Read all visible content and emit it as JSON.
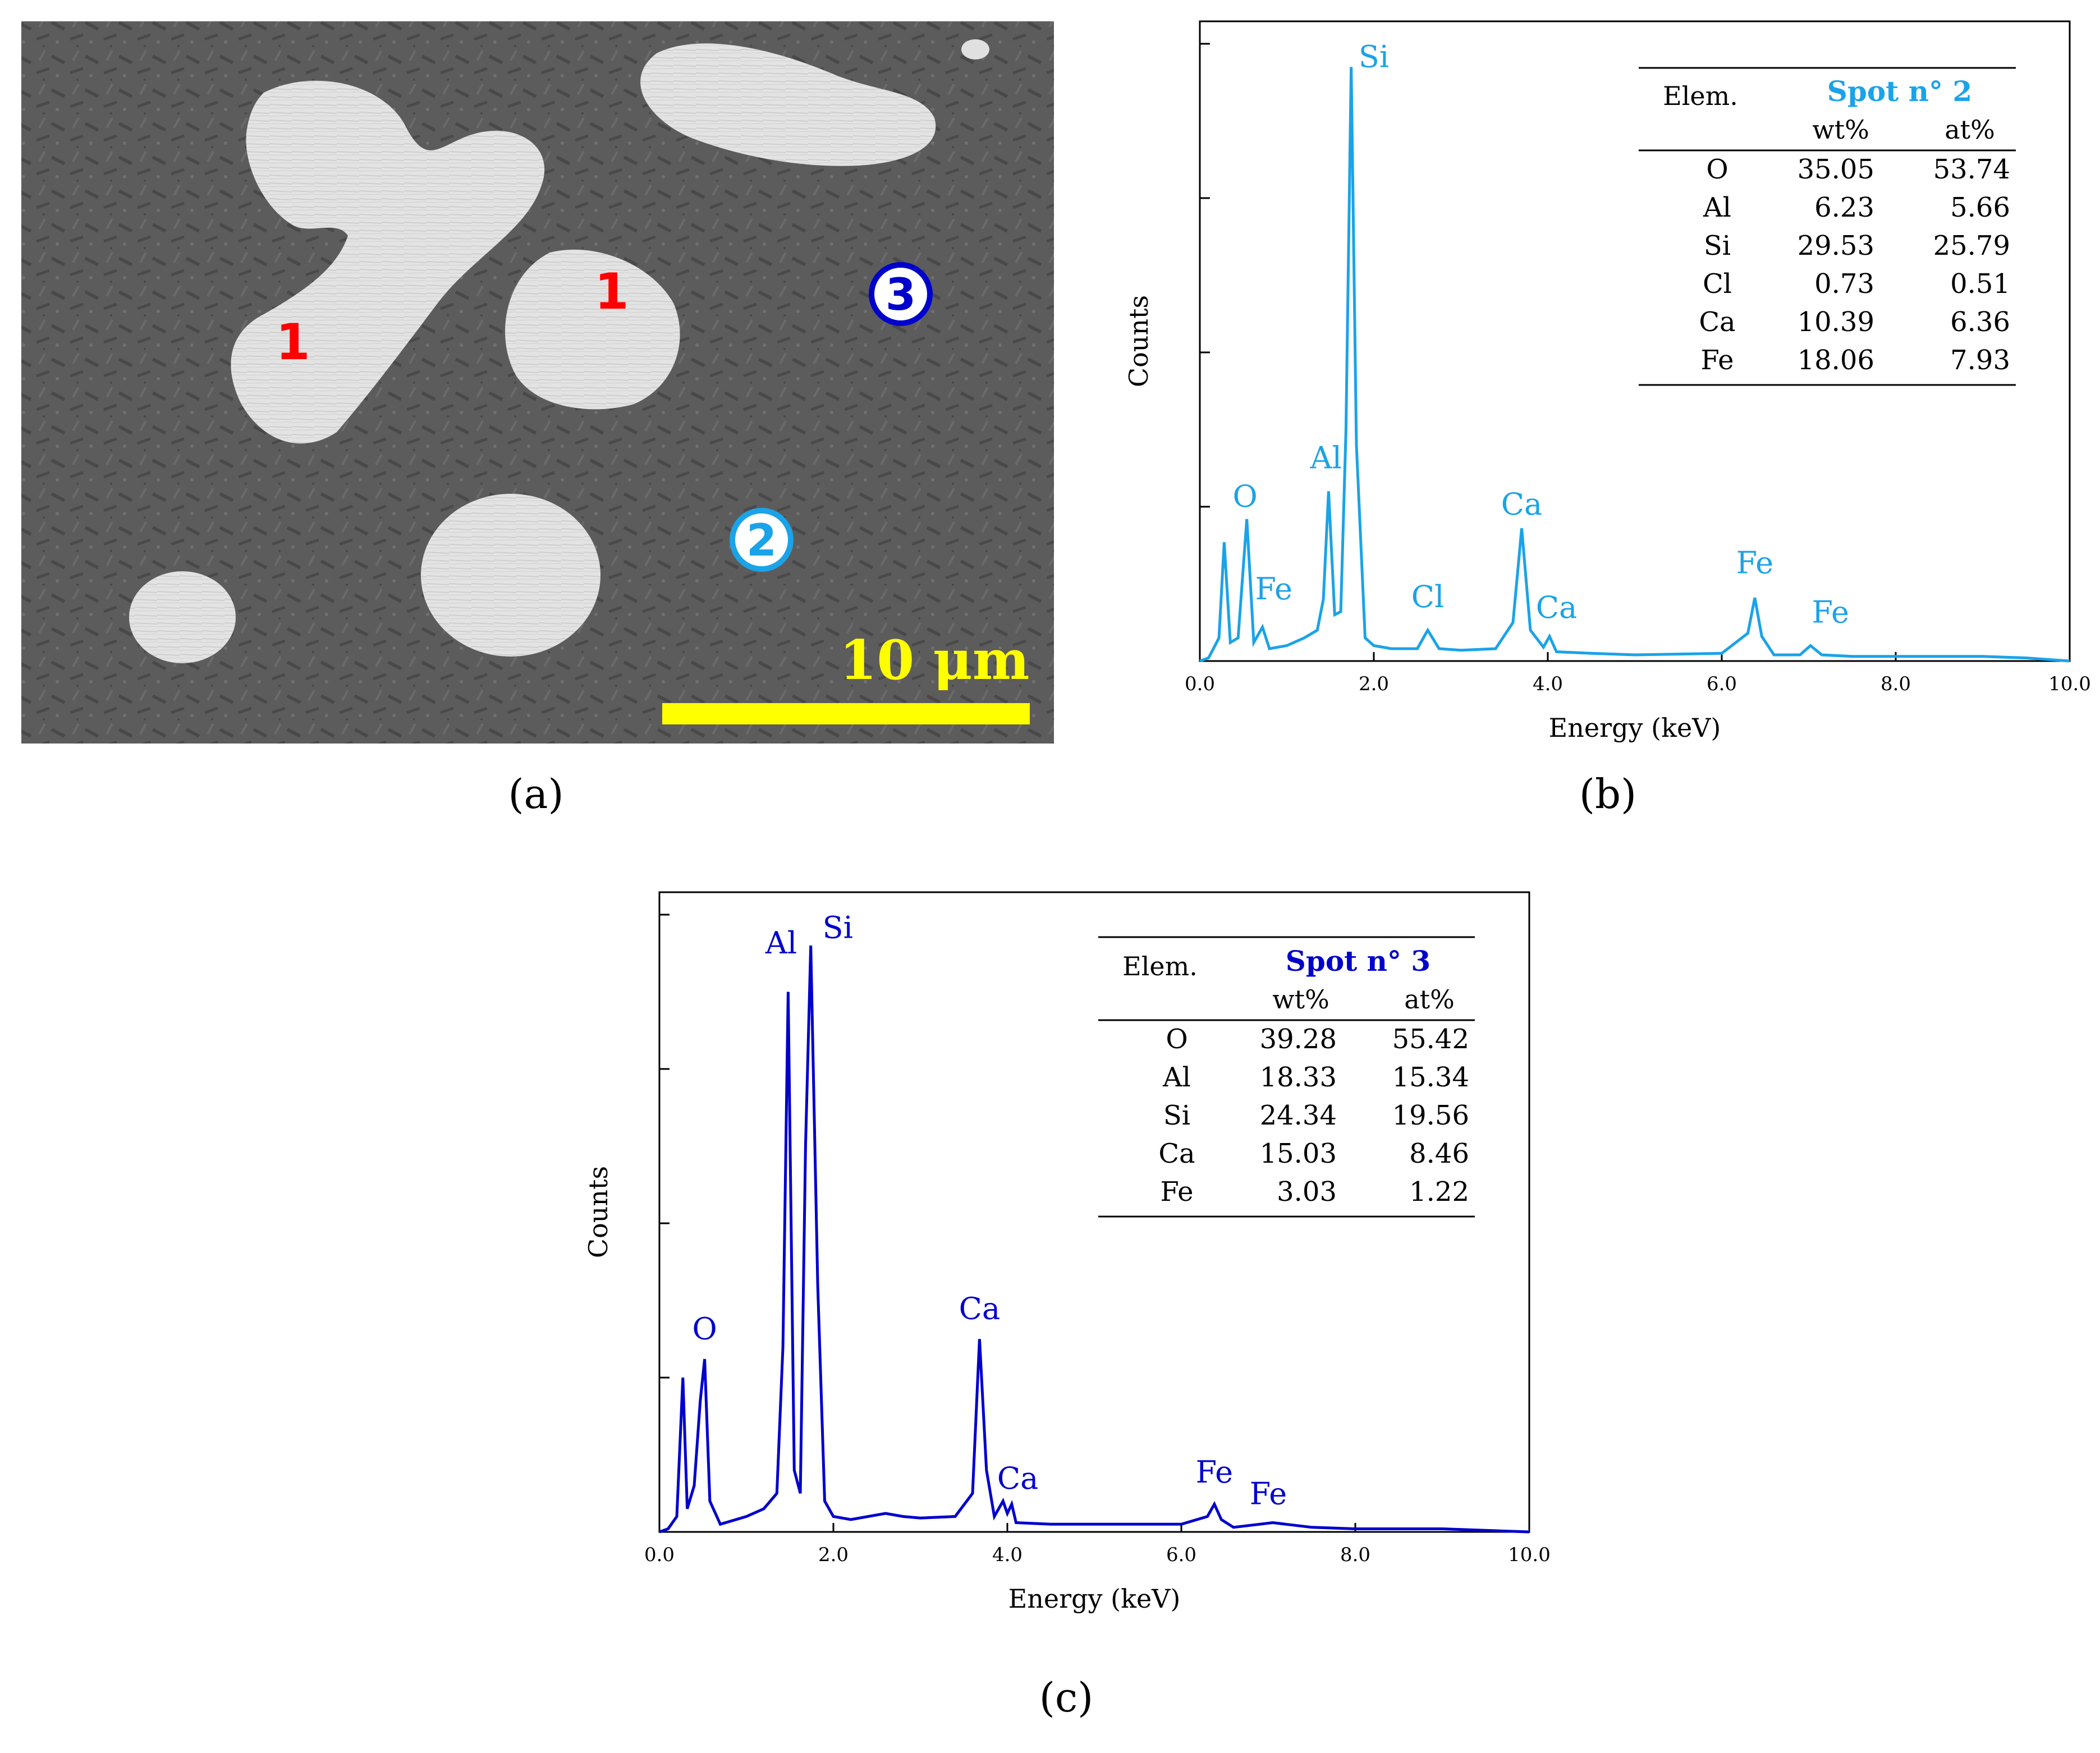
{
  "panel_labels": {
    "a": "(a)",
    "b": "(b)",
    "c": "(c)"
  },
  "sem": {
    "scale_bar_label": "10 μm",
    "spot_markers": [
      {
        "label": "1",
        "color": "#ff0000",
        "circled": false
      },
      {
        "label": "1",
        "color": "#ff0000",
        "circled": false
      },
      {
        "label": "2",
        "color": "#1aa3e8",
        "circled": true
      },
      {
        "label": "3",
        "color": "#0000cc",
        "circled": true
      }
    ],
    "colors": {
      "background": "#5a5a5a",
      "particle": "#e2e2e2",
      "scale_bar": "#ffff00"
    }
  },
  "chart_data": [
    {
      "type": "line",
      "panel": "b",
      "color": "#1aa3e8",
      "xlabel": "Energy (keV)",
      "ylabel": "Counts",
      "xlim": [
        0,
        10
      ],
      "ylim": [
        0,
        4
      ],
      "x_ticks": [
        "0.0",
        "2.0",
        "4.0",
        "6.0",
        "8.0",
        "10.0"
      ],
      "y_tick_values": [
        1,
        2,
        3,
        4
      ],
      "series": [
        {
          "x": [
            0.0,
            0.1,
            0.22,
            0.28,
            0.35,
            0.44,
            0.54,
            0.62,
            0.72,
            0.8,
            1.0,
            1.2,
            1.35,
            1.42,
            1.48,
            1.55,
            1.62,
            1.68,
            1.74,
            1.8,
            1.9,
            2.0,
            2.2,
            2.5,
            2.62,
            2.75,
            3.0,
            3.4,
            3.6,
            3.7,
            3.8,
            3.95,
            4.02,
            4.1,
            4.5,
            5.0,
            6.0,
            6.3,
            6.38,
            6.46,
            6.6,
            6.9,
            7.02,
            7.15,
            7.5,
            8.0,
            9.0,
            9.5,
            10.0
          ],
          "y": [
            0.0,
            0.02,
            0.15,
            0.77,
            0.12,
            0.15,
            0.92,
            0.12,
            0.22,
            0.08,
            0.1,
            0.15,
            0.2,
            0.4,
            1.1,
            0.3,
            0.32,
            1.5,
            3.85,
            1.4,
            0.15,
            0.1,
            0.08,
            0.08,
            0.2,
            0.08,
            0.07,
            0.08,
            0.25,
            0.86,
            0.2,
            0.09,
            0.16,
            0.06,
            0.05,
            0.04,
            0.05,
            0.18,
            0.41,
            0.16,
            0.04,
            0.04,
            0.1,
            0.04,
            0.03,
            0.03,
            0.03,
            0.02,
            0.0
          ]
        }
      ],
      "peak_labels": [
        {
          "text": "O",
          "x": 0.52,
          "y": 1.0
        },
        {
          "text": "Fe",
          "x": 0.85,
          "y": 0.4
        },
        {
          "text": "Al",
          "x": 1.45,
          "y": 1.25
        },
        {
          "text": "Si",
          "x": 2.0,
          "y": 3.85
        },
        {
          "text": "Cl",
          "x": 2.62,
          "y": 0.35
        },
        {
          "text": "Ca",
          "x": 3.7,
          "y": 0.95
        },
        {
          "text": "Ca",
          "x": 4.1,
          "y": 0.28
        },
        {
          "text": "Fe",
          "x": 6.38,
          "y": 0.57
        },
        {
          "text": "Fe",
          "x": 7.25,
          "y": 0.25
        }
      ],
      "table": {
        "elem_header": "Elem.",
        "spot_title": "Spot n° 2",
        "col_headers": [
          "wt%",
          "at%"
        ],
        "rows": [
          {
            "elem": "O",
            "wt": "35.05",
            "at": "53.74"
          },
          {
            "elem": "Al",
            "wt": "6.23",
            "at": "5.66"
          },
          {
            "elem": "Si",
            "wt": "29.53",
            "at": "25.79"
          },
          {
            "elem": "Cl",
            "wt": "0.73",
            "at": "0.51"
          },
          {
            "elem": "Ca",
            "wt": "10.39",
            "at": "6.36"
          },
          {
            "elem": "Fe",
            "wt": "18.06",
            "at": "7.93"
          }
        ]
      }
    },
    {
      "type": "line",
      "panel": "c",
      "color": "#0000cc",
      "xlabel": "Energy (keV)",
      "ylabel": "Counts",
      "xlim": [
        0,
        10
      ],
      "ylim": [
        0,
        4
      ],
      "x_ticks": [
        "0.0",
        "2.0",
        "4.0",
        "6.0",
        "8.0",
        "10.0"
      ],
      "y_tick_values": [
        1,
        2,
        3,
        4
      ],
      "series": [
        {
          "x": [
            0.0,
            0.1,
            0.2,
            0.27,
            0.32,
            0.4,
            0.47,
            0.52,
            0.58,
            0.7,
            1.0,
            1.2,
            1.35,
            1.42,
            1.48,
            1.55,
            1.62,
            1.68,
            1.74,
            1.82,
            1.9,
            2.0,
            2.2,
            2.6,
            2.8,
            3.0,
            3.4,
            3.6,
            3.68,
            3.76,
            3.85,
            3.95,
            4.0,
            4.05,
            4.1,
            4.5,
            5.0,
            6.0,
            6.3,
            6.38,
            6.46,
            6.6,
            6.9,
            7.05,
            7.2,
            7.5,
            8.0,
            9.0,
            10.0
          ],
          "y": [
            0.0,
            0.02,
            0.1,
            1.0,
            0.15,
            0.3,
            0.85,
            1.12,
            0.2,
            0.05,
            0.1,
            0.15,
            0.25,
            1.2,
            3.5,
            0.4,
            0.25,
            2.5,
            3.8,
            1.6,
            0.2,
            0.1,
            0.08,
            0.12,
            0.1,
            0.09,
            0.1,
            0.25,
            1.25,
            0.4,
            0.1,
            0.2,
            0.12,
            0.18,
            0.06,
            0.05,
            0.05,
            0.05,
            0.1,
            0.18,
            0.08,
            0.03,
            0.05,
            0.06,
            0.05,
            0.03,
            0.02,
            0.02,
            0.0
          ]
        }
      ],
      "peak_labels": [
        {
          "text": "O",
          "x": 0.52,
          "y": 1.25
        },
        {
          "text": "Al",
          "x": 1.4,
          "y": 3.75
        },
        {
          "text": "Si",
          "x": 2.05,
          "y": 3.85
        },
        {
          "text": "Ca",
          "x": 3.68,
          "y": 1.38
        },
        {
          "text": "Ca",
          "x": 4.12,
          "y": 0.28
        },
        {
          "text": "Fe",
          "x": 6.38,
          "y": 0.32
        },
        {
          "text": "Fe",
          "x": 7.0,
          "y": 0.18
        }
      ],
      "table": {
        "elem_header": "Elem.",
        "spot_title": "Spot n° 3",
        "col_headers": [
          "wt%",
          "at%"
        ],
        "rows": [
          {
            "elem": "O",
            "wt": "39.28",
            "at": "55.42"
          },
          {
            "elem": "Al",
            "wt": "18.33",
            "at": "15.34"
          },
          {
            "elem": "Si",
            "wt": "24.34",
            "at": "19.56"
          },
          {
            "elem": "Ca",
            "wt": "15.03",
            "at": "8.46"
          },
          {
            "elem": "Fe",
            "wt": "3.03",
            "at": "1.22"
          }
        ]
      }
    }
  ]
}
